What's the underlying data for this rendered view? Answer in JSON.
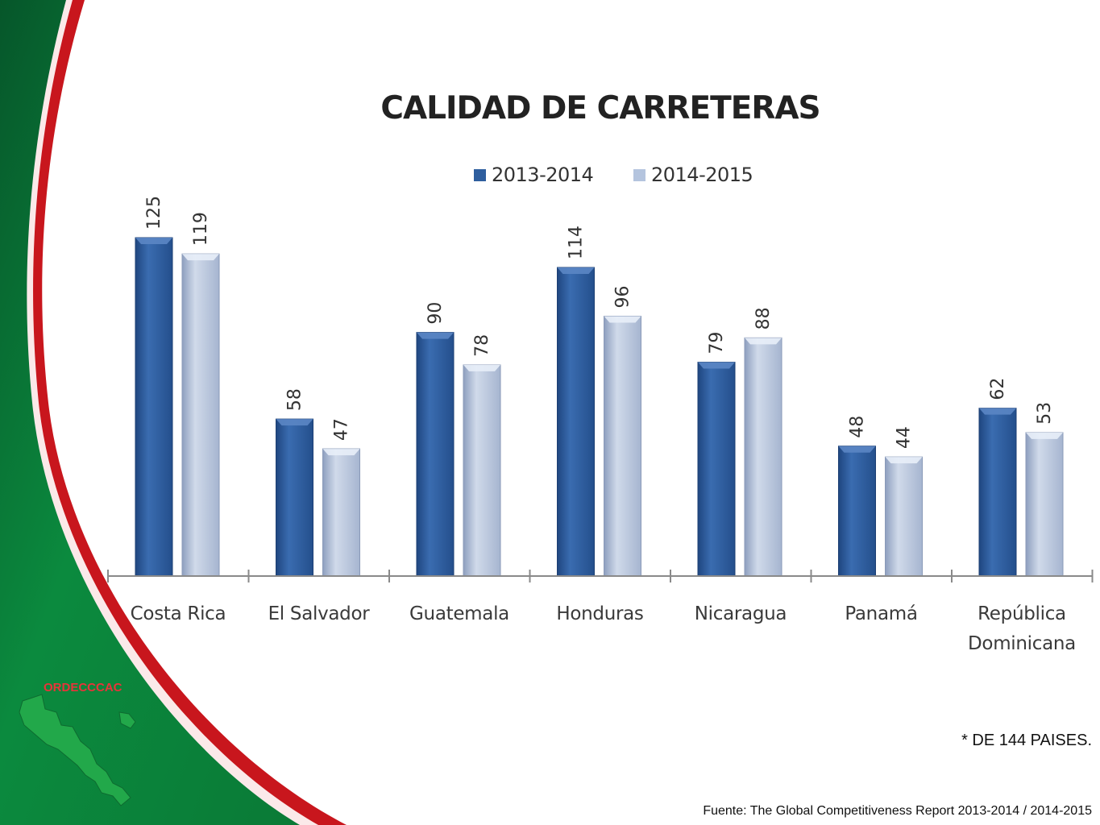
{
  "brand": {
    "name": "ORDECCCAC"
  },
  "colors": {
    "green": "#0b8a3e",
    "dark_green": "#06562a",
    "red": "#c8161d",
    "series1": "#2e5e9e",
    "series2": "#b4c4de"
  },
  "footnote": "* DE 144 PAISES.",
  "source": "Fuente: The Global Competitiveness Report 2013-2014 / 2014-2015",
  "chart_data": {
    "type": "bar",
    "title": "CALIDAD DE CARRETERAS",
    "categories": [
      [
        "Costa Rica"
      ],
      [
        "El Salvador"
      ],
      [
        "Guatemala"
      ],
      [
        "Honduras"
      ],
      [
        "Nicaragua"
      ],
      [
        "Panamá"
      ],
      [
        "República",
        "Dominicana"
      ]
    ],
    "series": [
      {
        "name": "2013-2014",
        "values": [
          125,
          58,
          90,
          114,
          79,
          48,
          62
        ]
      },
      {
        "name": "2014-2015",
        "values": [
          119,
          47,
          78,
          96,
          88,
          44,
          53
        ]
      }
    ],
    "ylim": [
      0,
      144
    ],
    "legend": "top-center",
    "grid": false,
    "xlabel": "",
    "ylabel": ""
  }
}
